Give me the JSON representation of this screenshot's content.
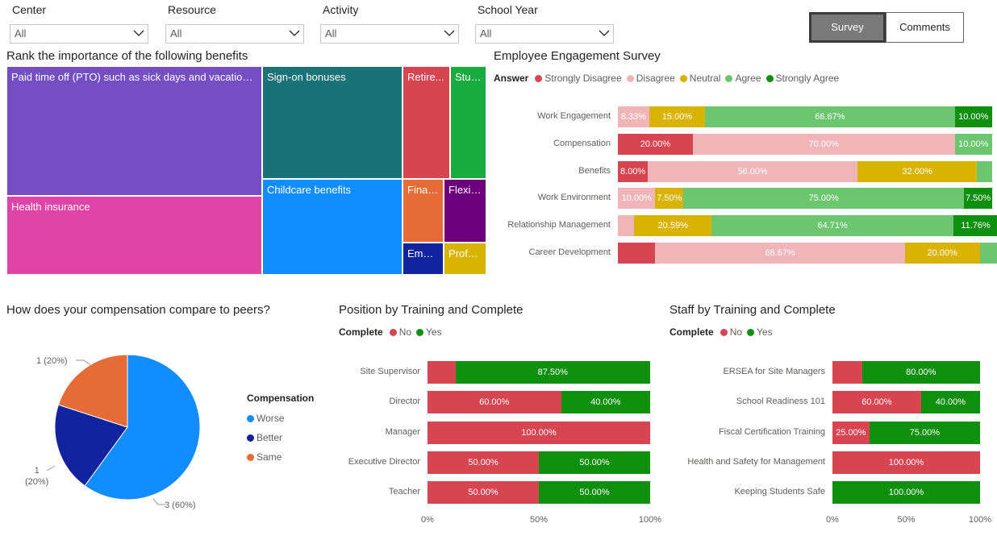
{
  "slicers": [
    {
      "title": "Center",
      "value": "All"
    },
    {
      "title": "Resource",
      "value": "All"
    },
    {
      "title": "Activity",
      "value": "All"
    },
    {
      "title": "School Year",
      "value": "All"
    }
  ],
  "buttons": {
    "survey": "Survey",
    "comments": "Comments"
  },
  "colors": {
    "strongly_disagree": "#d64550",
    "disagree": "#efb5b9",
    "neutral": "#d9b300",
    "agree": "#6cc56f",
    "strongly_agree": "#0e8f0e",
    "no": "#d64550",
    "yes": "#0e8f0e",
    "worse": "#118dff",
    "better": "#12239e",
    "same": "#e66c37"
  },
  "treemap": {
    "title": "Rank the importance of the following benefits",
    "items": [
      {
        "label": "Paid time off (PTO) such as sick days and vacation days",
        "color": "#744ec2"
      },
      {
        "label": "Health insurance",
        "color": "#e044a7"
      },
      {
        "label": "Sign-on bonuses",
        "color": "#197278"
      },
      {
        "label": "Childcare benefits",
        "color": "#118dff"
      },
      {
        "label": "Retire...",
        "color": "#d64550"
      },
      {
        "label": "Stud...",
        "color": "#1aab40"
      },
      {
        "label": "Finan...",
        "color": "#e66c37"
      },
      {
        "label": "Flexib...",
        "color": "#6b007b"
      },
      {
        "label": "Empl...",
        "color": "#12239e"
      },
      {
        "label": "Profe...",
        "color": "#d9b300"
      }
    ]
  },
  "chart_data": [
    {
      "type": "bar",
      "orientation": "horizontal-stacked-100",
      "title": "Employee Engagement Survey",
      "legend_title": "Answer",
      "categories": [
        "Work Engagement",
        "Compensation",
        "Benefits",
        "Work Environment",
        "Relationship Management",
        "Career Development"
      ],
      "series": [
        {
          "name": "Strongly Disagree",
          "values": [
            0,
            20.0,
            8.0,
            0,
            0,
            10.0
          ],
          "labels": [
            "",
            "20.00%",
            "8.00%",
            "",
            "",
            ""
          ]
        },
        {
          "name": "Disagree",
          "values": [
            8.33,
            70.0,
            56.0,
            10.0,
            4.41,
            66.67
          ],
          "labels": [
            "8.33%",
            "70.00%",
            "56.00%",
            "10.00%",
            "",
            "66.67%"
          ]
        },
        {
          "name": "Neutral",
          "values": [
            15.0,
            0,
            32.0,
            7.5,
            20.59,
            20.0
          ],
          "labels": [
            "15.00%",
            "",
            "32.00%",
            "7.50%",
            "20.59%",
            "20.00%"
          ]
        },
        {
          "name": "Agree",
          "values": [
            66.67,
            10.0,
            4.0,
            75.0,
            64.71,
            6.67
          ],
          "labels": [
            "66.67%",
            "10.00%",
            "",
            "75.00%",
            "64.71%",
            ""
          ]
        },
        {
          "name": "Strongly Agree",
          "values": [
            10.0,
            0,
            0,
            7.5,
            11.76,
            0
          ],
          "labels": [
            "10.00%",
            "",
            "",
            "7.50%",
            "11.76%",
            ""
          ]
        }
      ]
    },
    {
      "type": "pie",
      "title": "How does your compensation compare to peers?",
      "legend_title": "Compensation",
      "slices": [
        {
          "name": "Worse",
          "value": 3,
          "label": "3 (60%)"
        },
        {
          "name": "Better",
          "value": 1,
          "label": "1 (20%)"
        },
        {
          "name": "Same",
          "value": 1,
          "label": "1 (20%)"
        }
      ]
    },
    {
      "type": "bar",
      "orientation": "horizontal-stacked-100",
      "title": "Position by Training and Complete",
      "legend_title": "Complete",
      "categories": [
        "Site Supervisor",
        "Director",
        "Manager",
        "Executive Director",
        "Teacher"
      ],
      "series": [
        {
          "name": "No",
          "values": [
            12.5,
            60.0,
            100.0,
            50.0,
            50.0
          ],
          "labels": [
            "",
            "60.00%",
            "100.00%",
            "50.00%",
            "50.00%"
          ]
        },
        {
          "name": "Yes",
          "values": [
            87.5,
            40.0,
            0,
            50.0,
            50.0
          ],
          "labels": [
            "87.50%",
            "40.00%",
            "",
            "50.00%",
            "50.00%"
          ]
        }
      ],
      "x_ticks": [
        "0%",
        "50%",
        "100%"
      ]
    },
    {
      "type": "bar",
      "orientation": "horizontal-stacked-100",
      "title": "Staff by Training and Complete",
      "legend_title": "Complete",
      "categories": [
        "ERSEA for Site Managers",
        "School Readiness 101",
        "Fiscal Certification Training",
        "Health and Safety for Management",
        "Keeping Students Safe"
      ],
      "series": [
        {
          "name": "No",
          "values": [
            20.0,
            60.0,
            25.0,
            100.0,
            0
          ],
          "labels": [
            "",
            "60.00%",
            "25.00%",
            "100.00%",
            ""
          ]
        },
        {
          "name": "Yes",
          "values": [
            80.0,
            40.0,
            75.0,
            0,
            100.0
          ],
          "labels": [
            "80.00%",
            "40.00%",
            "75.00%",
            "",
            "100.00%"
          ]
        }
      ],
      "x_ticks": [
        "0%",
        "50%",
        "100%"
      ]
    }
  ]
}
